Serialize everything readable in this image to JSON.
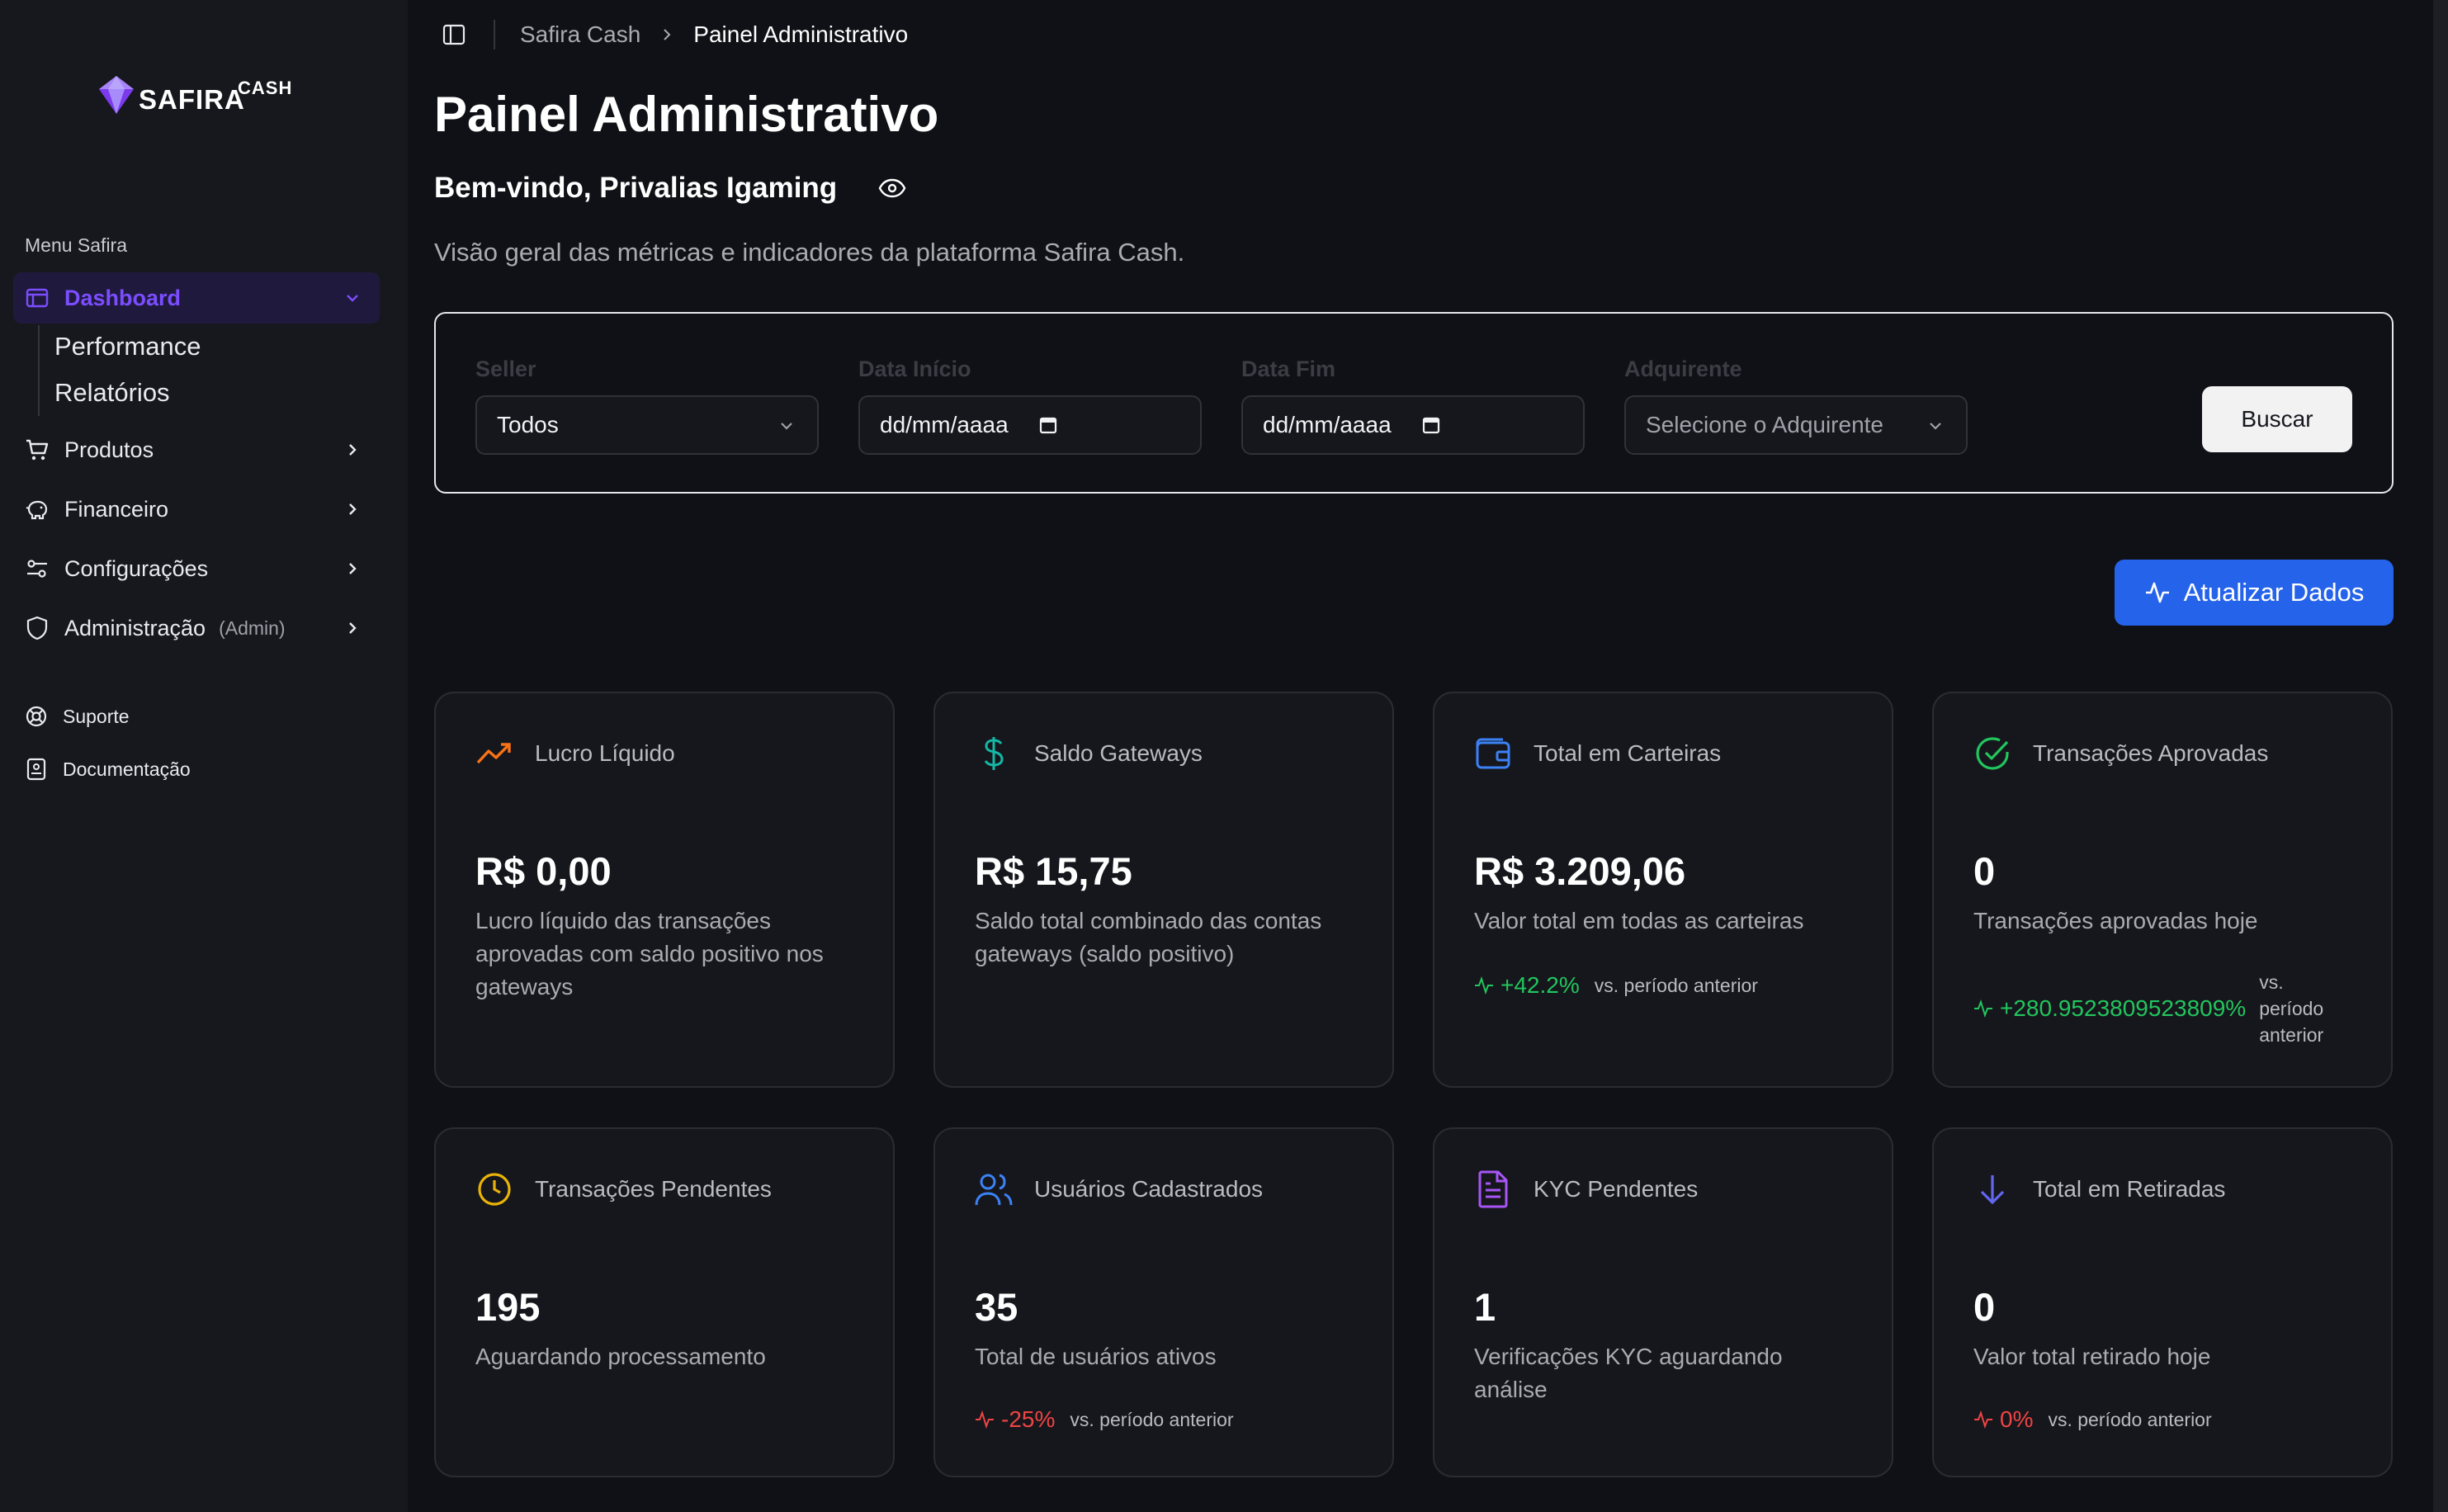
{
  "brand": {
    "name": "SAFIRA",
    "suffix": "CASH"
  },
  "sidebar": {
    "section_label": "Menu Safira",
    "dashboard": {
      "label": "Dashboard",
      "sub": [
        "Performance",
        "Relatórios"
      ]
    },
    "items": [
      {
        "label": "Produtos"
      },
      {
        "label": "Financeiro"
      },
      {
        "label": "Configurações"
      },
      {
        "label": "Administração",
        "tag": "(Admin)"
      }
    ],
    "footer": [
      {
        "label": "Suporte"
      },
      {
        "label": "Documentação"
      }
    ]
  },
  "breadcrumb": {
    "root": "Safira Cash",
    "current": "Painel Administrativo"
  },
  "page": {
    "title": "Painel Administrativo",
    "welcome": "Bem-vindo, Privalias Igaming",
    "subtitle": "Visão geral das métricas e indicadores da plataforma Safira Cash."
  },
  "filters": {
    "seller": {
      "label": "Seller",
      "value": "Todos"
    },
    "start": {
      "label": "Data Início",
      "value": "dd/mm/aaaa"
    },
    "end": {
      "label": "Data Fim",
      "value": "dd/mm/aaaa"
    },
    "acquirer": {
      "label": "Adquirente",
      "placeholder": "Selecione o Adquirente"
    },
    "search_label": "Buscar"
  },
  "refresh_label": "Atualizar Dados",
  "cards": [
    {
      "title": "Lucro Líquido",
      "value": "R$ 0,00",
      "desc": "Lucro líquido das transações aprovadas com saldo positivo nos gateways",
      "icon": "trending-up-icon",
      "color": "#f97316"
    },
    {
      "title": "Saldo Gateways",
      "value": "R$ 15,75",
      "desc": "Saldo total combinado das contas gateways (saldo positivo)",
      "icon": "dollar-icon",
      "color": "#14b8a6"
    },
    {
      "title": "Total em Carteiras",
      "value": "R$ 3.209,06",
      "desc": "Valor total em todas as carteiras",
      "icon": "wallet-icon",
      "color": "#3b82f6",
      "trend": {
        "value": "+42.2%",
        "vs": "vs. período anterior"
      }
    },
    {
      "title": "Transações Aprovadas",
      "value": "0",
      "desc": "Transações aprovadas hoje",
      "icon": "check-circle-icon",
      "color": "#22c55e",
      "trend": {
        "value": "+280.9523809523809%",
        "vs": "vs. período anterior"
      }
    },
    {
      "title": "Transações Pendentes",
      "value": "195",
      "desc": "Aguardando processamento",
      "icon": "clock-icon",
      "color": "#eab308"
    },
    {
      "title": "Usuários Cadastrados",
      "value": "35",
      "desc": "Total de usuários ativos",
      "icon": "users-icon",
      "color": "#3b82f6",
      "trend": {
        "value": "-25%",
        "vs": "vs. período anterior"
      }
    },
    {
      "title": "KYC Pendentes",
      "value": "1",
      "desc": "Verificações KYC aguardando análise",
      "icon": "file-icon",
      "color": "#a855f7"
    },
    {
      "title": "Total em Retiradas",
      "value": "0",
      "desc": "Valor total retirado hoje",
      "icon": "arrow-down-icon",
      "color": "#6366f1",
      "trend": {
        "value": "0%",
        "vs": "vs. período anterior"
      }
    }
  ],
  "colors": {
    "accent": "#7b4dff",
    "primary_button": "#2563eb",
    "positive": "#22c55e",
    "negative": "#ef4444"
  }
}
